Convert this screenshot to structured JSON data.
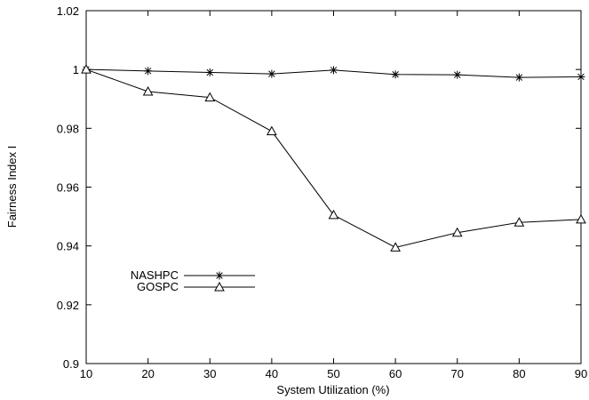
{
  "chart_data": {
    "type": "line",
    "title": "",
    "xlabel": "System Utilization (%)",
    "ylabel": "Fairness Index I",
    "x": [
      10,
      20,
      30,
      40,
      50,
      60,
      70,
      80,
      90
    ],
    "xlim": [
      10,
      90
    ],
    "ylim": [
      0.9,
      1.02
    ],
    "x_ticks": [
      "10",
      "20",
      "30",
      "40",
      "50",
      "60",
      "70",
      "80",
      "90"
    ],
    "y_ticks": [
      "0.9",
      "0.92",
      "0.94",
      "0.96",
      "0.98",
      "1",
      "1.02"
    ],
    "grid": false,
    "legend_position": "middle-left",
    "series": [
      {
        "name": "NASHPC",
        "marker": "asterisk",
        "color": "#000000",
        "values": [
          1.0,
          0.9995,
          0.999,
          0.9985,
          0.9998,
          0.9983,
          0.9982,
          0.9973,
          0.9975
        ]
      },
      {
        "name": "GOSPC",
        "marker": "triangle",
        "color": "#000000",
        "values": [
          1.0,
          0.9925,
          0.9905,
          0.979,
          0.9505,
          0.9395,
          0.9445,
          0.948,
          0.949
        ]
      }
    ]
  }
}
